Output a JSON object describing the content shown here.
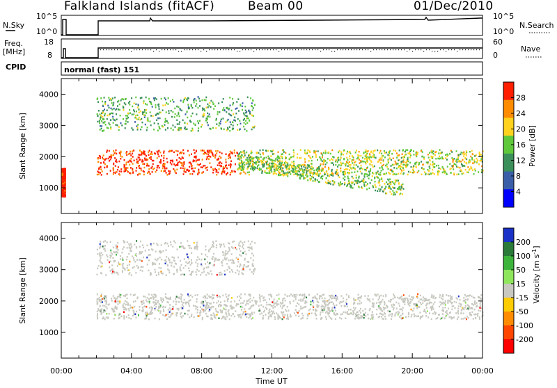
{
  "header": {
    "station": "Falkland Islands (fitACF)",
    "beam": "Beam 00",
    "date": "01/Dec/2010"
  },
  "panels": {
    "nsky": {
      "label": "N.Sky",
      "tick_top": "10^5",
      "tick_bottom": "10^0",
      "right_label": "N.Search",
      "right_tick_top": "10^5",
      "right_tick_bottom": "10^0"
    },
    "freq": {
      "label_line1": "Freq.",
      "label_line2": "[MHz]",
      "tick_top": "18",
      "tick_bottom": "8",
      "right_label": "Nave",
      "right_tick_top": "60",
      "right_tick_bottom": "0"
    },
    "cpid": {
      "label": "CPID",
      "value": "normal (fast) 151"
    }
  },
  "chart_data": [
    {
      "type": "heatmap",
      "title": "",
      "xlabel": "Time UT",
      "ylabel": "Slant Range [km]",
      "x_ticks": [
        "00:00",
        "04:00",
        "08:00",
        "12:00",
        "16:00",
        "20:00",
        "00:00"
      ],
      "x_range_hours": [
        0,
        24
      ],
      "y_ticks": [
        1000,
        2000,
        3000,
        4000
      ],
      "ylim": [
        180,
        4500
      ],
      "colorbar": {
        "label": "Power [dB]",
        "ticks": [
          4,
          8,
          12,
          16,
          20,
          24,
          28
        ],
        "colors": [
          "#0000ff",
          "#3a5fa8",
          "#3a8f5a",
          "#5fc83a",
          "#ffd21e",
          "#ff8c00",
          "#ff1e00"
        ]
      },
      "features": [
        {
          "name": "main echo band",
          "t_start": 2.0,
          "t_end": 24,
          "range_km": [
            1400,
            2200
          ],
          "power_db": 26
        },
        {
          "name": "far range scatter",
          "t_start": 2.0,
          "t_end": 11.0,
          "range_km": [
            2800,
            3900
          ],
          "power_db": 12
        },
        {
          "name": "late descending band",
          "t_start": 10.0,
          "t_end": 19.5,
          "range_km": [
            700,
            1800
          ],
          "power_db": 14
        },
        {
          "name": "early burst",
          "t_start": 0.0,
          "t_end": 0.2,
          "range_km": [
            700,
            1600
          ],
          "power_db": 28
        }
      ]
    },
    {
      "type": "heatmap",
      "title": "",
      "xlabel": "Time UT",
      "ylabel": "Slant Range [km]",
      "x_ticks": [
        "00:00",
        "04:00",
        "08:00",
        "12:00",
        "16:00",
        "20:00",
        "00:00"
      ],
      "x_range_hours": [
        0,
        24
      ],
      "y_ticks": [
        1000,
        2000,
        3000,
        4000
      ],
      "ylim": [
        180,
        4500
      ],
      "colorbar": {
        "label": "Velocity [m s^-1]",
        "ticks": [
          200,
          100,
          50,
          15,
          -15,
          -50,
          -100,
          -200
        ],
        "colors": [
          "#1a32c8",
          "#2a7a3a",
          "#3cb43c",
          "#8ee65a",
          "#c8c8c0",
          "#ffcc00",
          "#ff8c00",
          "#ff4600",
          "#ff0000"
        ]
      },
      "features": [
        {
          "name": "ground scatter band",
          "t_start": 2.0,
          "t_end": 24,
          "range_km": [
            1400,
            2200
          ],
          "velocity": 0
        },
        {
          "name": "far range scatter",
          "t_start": 2.0,
          "t_end": 11.0,
          "range_km": [
            2800,
            3900
          ],
          "velocity": 0
        }
      ]
    }
  ]
}
